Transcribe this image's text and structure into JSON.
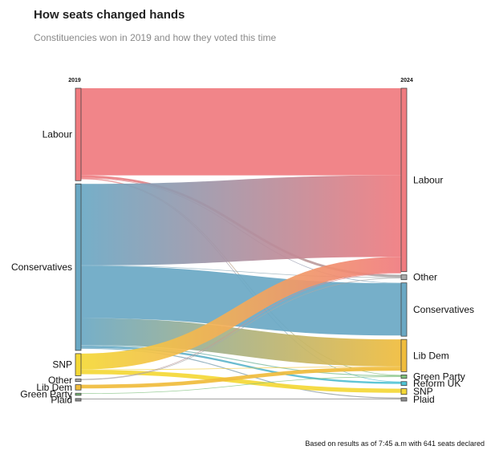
{
  "chart_data": {
    "type": "sankey",
    "title": "How seats changed hands",
    "subtitle": "Constituencies won in 2019 and how they voted this time",
    "footnote": "Based on results as of 7:45 a.m with 641 seats declared",
    "left_column_label": "2019",
    "right_column_label": "2024",
    "colors": {
      "Labour": "#f07b7f",
      "Conservatives": "#6aa8c4",
      "SNP": "#f4d836",
      "Other": "#a9a9a9",
      "Lib Dem": "#f0bc3c",
      "Green Party": "#7cbf7a",
      "Reform UK": "#4fc4d4",
      "Plaid": "#8e8e8e"
    },
    "left_nodes": [
      "Labour",
      "Conservatives",
      "SNP",
      "Other",
      "Lib Dem",
      "Green Party",
      "Plaid"
    ],
    "right_nodes": [
      "Labour",
      "Other",
      "Conservatives",
      "Lib Dem",
      "Green Party",
      "Reform UK",
      "SNP",
      "Plaid"
    ],
    "flows": [
      {
        "from": "Labour",
        "to": "Labour",
        "value": 187
      },
      {
        "from": "Labour",
        "to": "Other",
        "value": 5
      },
      {
        "from": "Labour",
        "to": "Conservatives",
        "value": 1
      },
      {
        "from": "Labour",
        "to": "Green Party",
        "value": 1
      },
      {
        "from": "Labour",
        "to": "Reform UK",
        "value": 1
      },
      {
        "from": "Conservatives",
        "to": "Labour",
        "value": 175
      },
      {
        "from": "Conservatives",
        "to": "Other",
        "value": 1
      },
      {
        "from": "Conservatives",
        "to": "Conservatives",
        "value": 112
      },
      {
        "from": "Conservatives",
        "to": "Lib Dem",
        "value": 58
      },
      {
        "from": "Conservatives",
        "to": "Green Party",
        "value": 2
      },
      {
        "from": "Conservatives",
        "to": "Reform UK",
        "value": 4
      },
      {
        "from": "Conservatives",
        "to": "Plaid",
        "value": 2
      },
      {
        "from": "SNP",
        "to": "Labour",
        "value": 34
      },
      {
        "from": "SNP",
        "to": "Lib Dem",
        "value": 1
      },
      {
        "from": "SNP",
        "to": "SNP",
        "value": 9
      },
      {
        "from": "Other",
        "to": "Other",
        "value": 1
      },
      {
        "from": "Other",
        "to": "Labour",
        "value": 1
      },
      {
        "from": "Lib Dem",
        "to": "Lib Dem",
        "value": 8
      },
      {
        "from": "Green Party",
        "to": "Green Party",
        "value": 1
      },
      {
        "from": "Plaid",
        "to": "Plaid",
        "value": 2
      }
    ]
  }
}
